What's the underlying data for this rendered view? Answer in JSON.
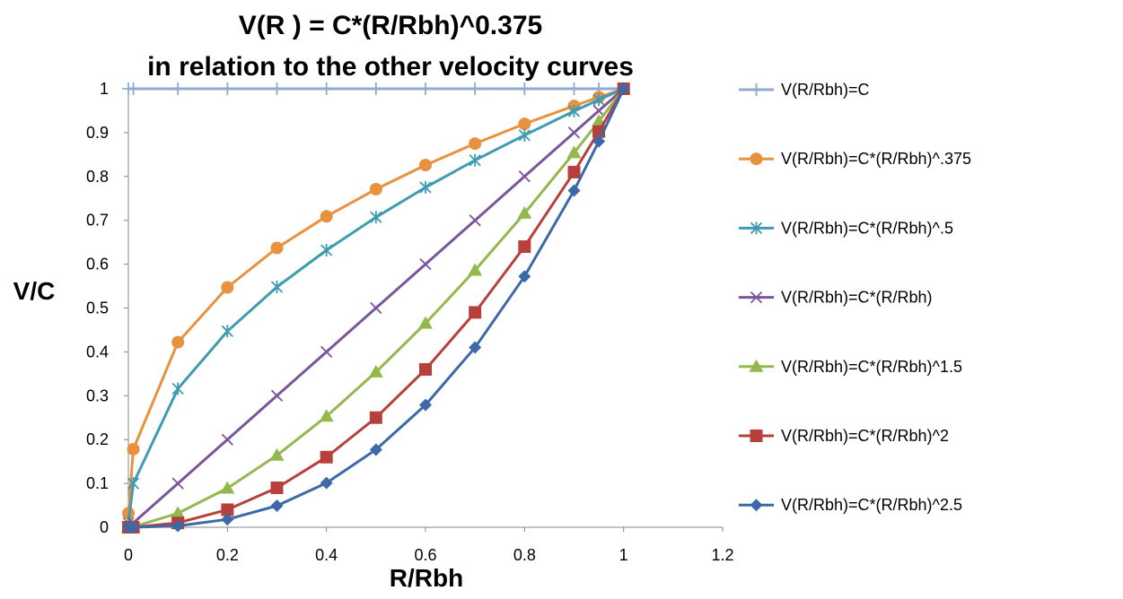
{
  "chart_data": {
    "type": "line",
    "title": "V(R ) = C*(R/Rbh)^0.375",
    "subtitle": "in relation to the other velocity curves",
    "xlabel": "R/Rbh",
    "ylabel": "V/C",
    "xlim": [
      0,
      1.2
    ],
    "ylim": [
      0,
      1
    ],
    "xticks": [
      "0",
      "0.2",
      "0.4",
      "0.6",
      "0.8",
      "1",
      "1.2"
    ],
    "yticks": [
      "0",
      "0.1",
      "0.2",
      "0.3",
      "0.4",
      "0.5",
      "0.6",
      "0.7",
      "0.8",
      "0.9",
      "1"
    ],
    "grid": false,
    "legend_position": "right",
    "x": [
      0.0001,
      0.01,
      0.1,
      0.2,
      0.3,
      0.4,
      0.5,
      0.6,
      0.7,
      0.8,
      0.9,
      0.95,
      1
    ],
    "series": [
      {
        "name": "V(R/Rbh)=C",
        "color": "#8eaad1",
        "marker": "plus",
        "values": [
          1,
          1,
          1,
          1,
          1,
          1,
          1,
          1,
          1,
          1,
          1,
          1,
          1
        ]
      },
      {
        "name": "V(R/Rbh)=C*(R/Rbh)^.375",
        "color": "#e8913e",
        "marker": "circle",
        "values": [
          0.032,
          0.178,
          0.422,
          0.547,
          0.637,
          0.709,
          0.771,
          0.826,
          0.875,
          0.92,
          0.961,
          0.981,
          1
        ]
      },
      {
        "name": "V(R/Rbh)=C*(R/Rbh)^.5",
        "color": "#3d9cb2",
        "marker": "star",
        "values": [
          0.01,
          0.1,
          0.316,
          0.447,
          0.548,
          0.632,
          0.707,
          0.775,
          0.837,
          0.894,
          0.949,
          0.975,
          1
        ]
      },
      {
        "name": "V(R/Rbh)=C*(R/Rbh)",
        "color": "#7a559c",
        "marker": "x",
        "values": [
          0.0001,
          0.01,
          0.1,
          0.2,
          0.3,
          0.4,
          0.5,
          0.6,
          0.7,
          0.8,
          0.9,
          0.95,
          1
        ]
      },
      {
        "name": "V(R/Rbh)=C*(R/Rbh)^1.5",
        "color": "#93b84e",
        "marker": "triangle",
        "values": [
          0,
          0.001,
          0.032,
          0.089,
          0.164,
          0.253,
          0.354,
          0.465,
          0.586,
          0.716,
          0.854,
          0.926,
          1
        ]
      },
      {
        "name": "V(R/Rbh)=C*(R/Rbh)^2",
        "color": "#b7403d",
        "marker": "square",
        "values": [
          0,
          0.0001,
          0.01,
          0.04,
          0.09,
          0.16,
          0.25,
          0.36,
          0.49,
          0.64,
          0.81,
          0.9025,
          1
        ]
      },
      {
        "name": "V(R/Rbh)=C*(R/Rbh)^2.5",
        "color": "#3c6aa8",
        "marker": "diamond",
        "values": [
          0,
          0,
          0.003,
          0.018,
          0.049,
          0.101,
          0.177,
          0.279,
          0.41,
          0.572,
          0.768,
          0.88,
          1
        ]
      }
    ]
  }
}
